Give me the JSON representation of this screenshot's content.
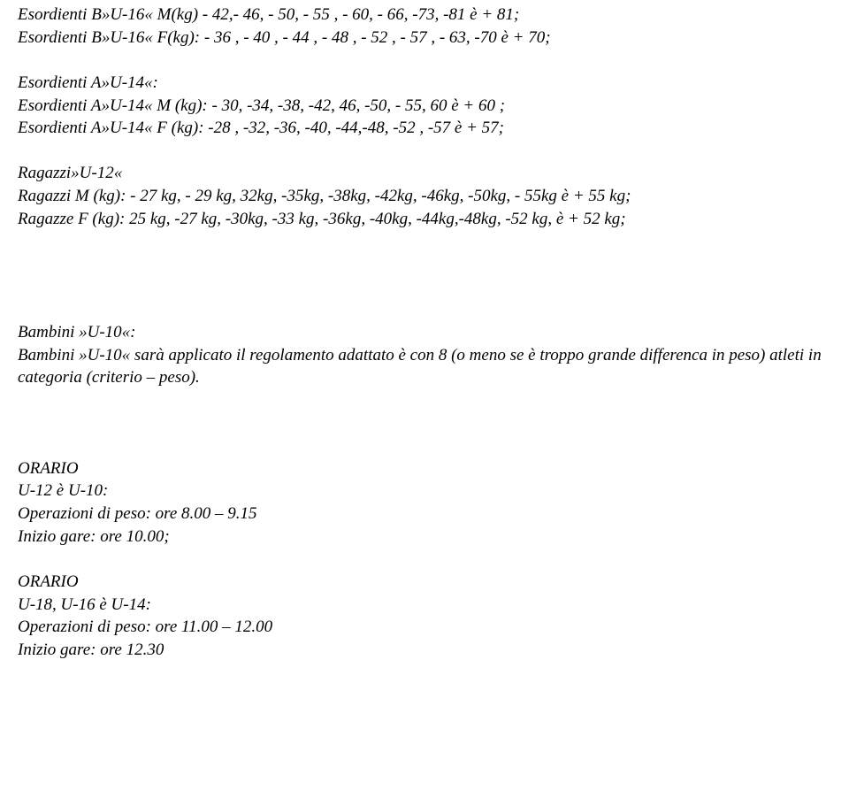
{
  "lines": {
    "l1": "Esordienti B»U-16«  M(kg) - 42,- 46, - 50, - 55 , - 60, - 66, -73, -81  è + 81;",
    "l2": "Esordienti B»U-16«  F(kg): - 36 , - 40 , - 44 , - 48 , - 52 , - 57 , - 63, -70  è + 70;",
    "l3": "Esordienti A»U-14«:",
    "l4": "Esordienti A»U-14«  M (kg): - 30, -34, -38, -42,  46, -50, - 55, 60  è + 60 ;",
    "l5": "Esordienti A»U-14«  F (kg): -28 , -32, -36, -40, -44,-48, -52 , -57 è + 57;",
    "l6": "Ragazzi»U-12«",
    "l7": "Ragazzi M (kg): - 27 kg, - 29 kg, 32kg, -35kg, -38kg, -42kg, -46kg, -50kg, - 55kg è +  55 kg;",
    "l8": "Ragazze F (kg): 25 kg, -27 kg, -30kg, -33 kg, -36kg, -40kg, -44kg,-48kg, -52 kg, è + 52 kg;",
    "l9": "Bambini  »U-10«:",
    "l10": "Bambini  »U-10« sarà applicato il regolamento adattato è con 8 (o meno se è troppo grande differenca in peso) atleti in categoria (criterio – peso).",
    "l11": "ORARIO",
    "l12": "U-12 è U-10:",
    "l13": "Operazioni di peso:  ore 8.00 – 9.15",
    "l14": "Inizio gare: ore 10.00;",
    "l15": "ORARIO",
    "l16": "U-18, U-16 è U-14:",
    "l17": "Operazioni di peso: ore 11.00 – 12.00",
    "l18": "Inizio gare: ore 12.30"
  }
}
